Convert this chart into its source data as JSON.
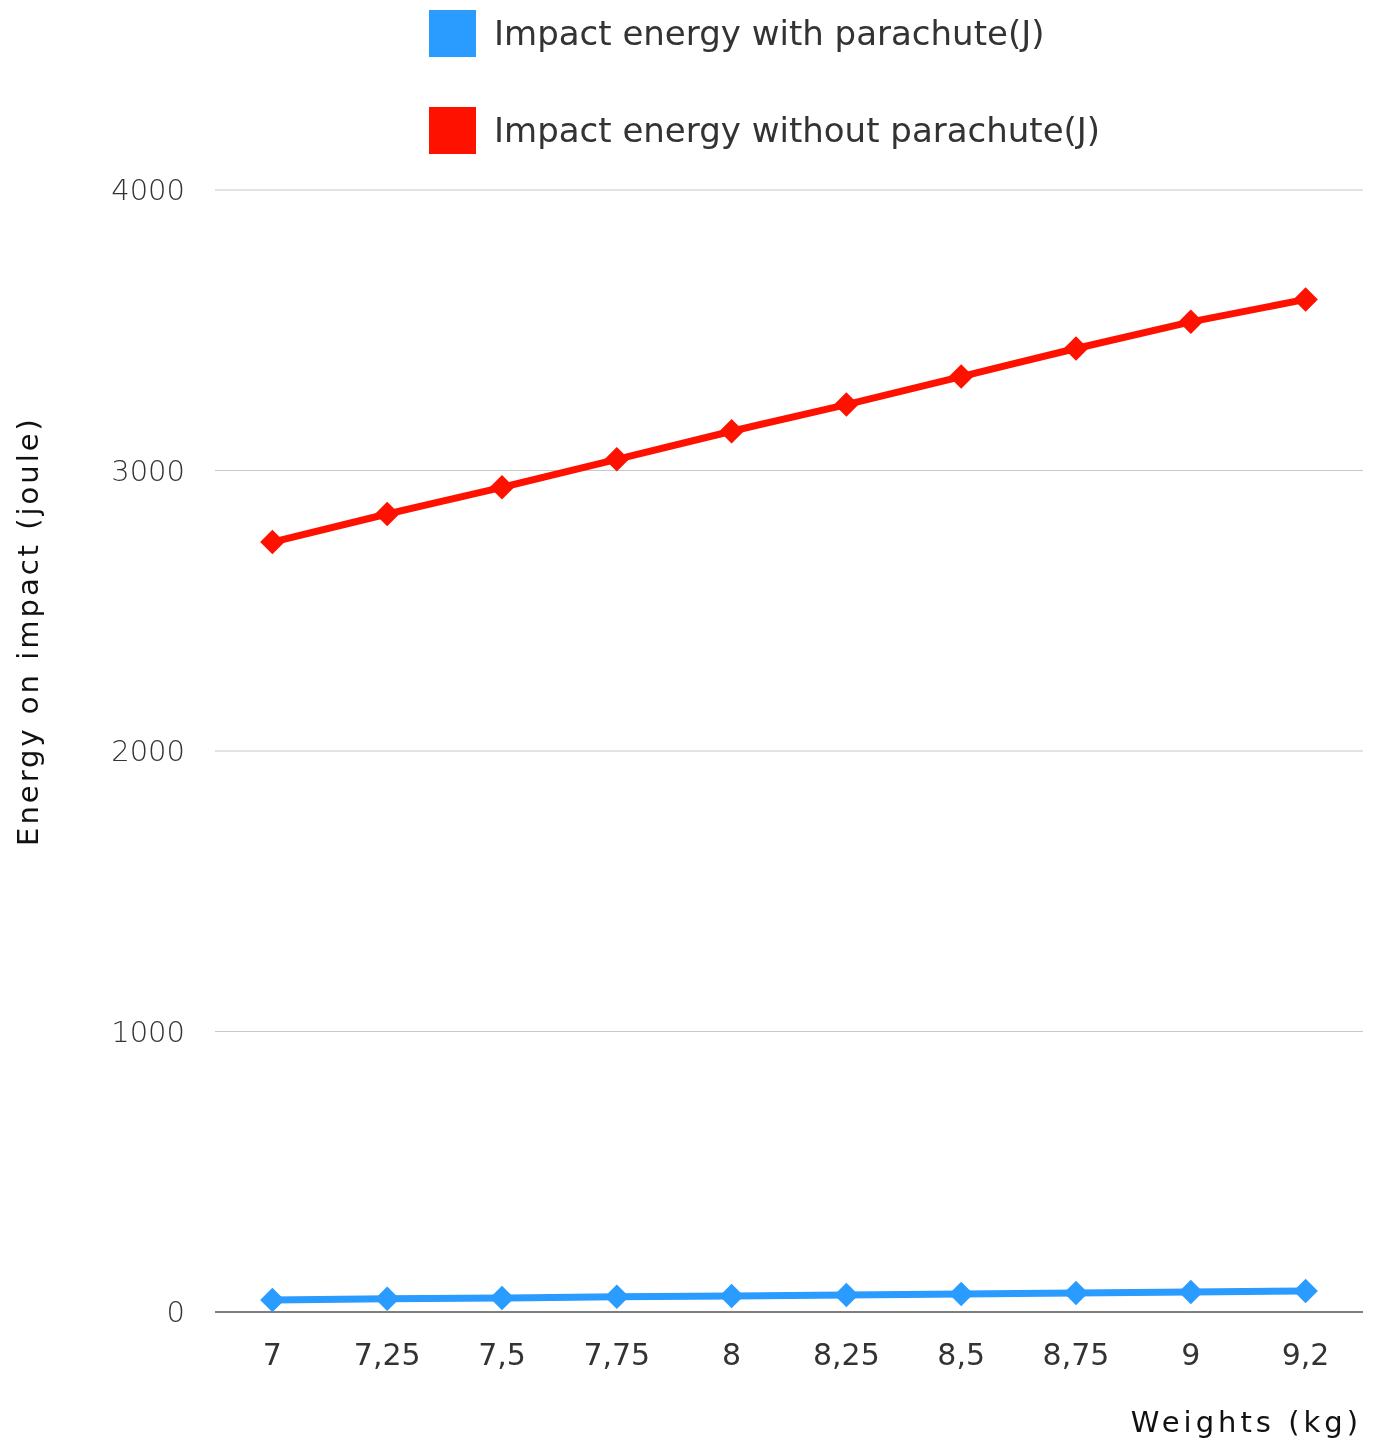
{
  "chart_data": {
    "type": "line",
    "xlabel": "Weights (kg)",
    "ylabel": "Energy on impact (joule)",
    "categories": [
      "7",
      "7,25",
      "7,5",
      "7,75",
      "8",
      "8,25",
      "8,5",
      "8,75",
      "9",
      "9,2"
    ],
    "series": [
      {
        "name": "Impact energy with parachute(J)",
        "color": "#2a9bff",
        "values": [
          43,
          47,
          50,
          54,
          57,
          61,
          64,
          68,
          71,
          75
        ]
      },
      {
        "name": "Impact energy without parachute(J)",
        "color": "#ff1100",
        "values": [
          2745,
          2845,
          2940,
          3040,
          3140,
          3235,
          3335,
          3435,
          3530,
          3610
        ]
      }
    ],
    "ylim": [
      0,
      4000
    ],
    "yticks": [
      0,
      1000,
      2000,
      3000,
      4000
    ],
    "grid": "y",
    "legend": "top",
    "marker": "diamond",
    "line_style": "solid"
  }
}
